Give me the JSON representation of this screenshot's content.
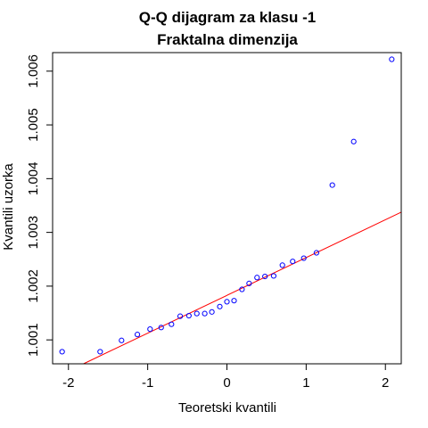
{
  "chart_data": {
    "type": "scatter",
    "title": "Q-Q dijagram za klasu -1",
    "subtitle": "Fraktalna dimenzija",
    "xlabel": "Teoretski kvantili",
    "ylabel": "Kvantili uzorka",
    "xlim": [
      -2.2,
      2.2
    ],
    "ylim": [
      1.000555,
      1.006345
    ],
    "x_ticks": [
      -2,
      -1,
      0,
      1,
      2
    ],
    "x_tick_labels": [
      "-2",
      "-1",
      "0",
      "1",
      "2"
    ],
    "y_ticks": [
      1.001,
      1.002,
      1.003,
      1.004,
      1.005,
      1.006
    ],
    "y_tick_labels": [
      "1.001",
      "1.002",
      "1.003",
      "1.004",
      "1.005",
      "1.006"
    ],
    "grid": false,
    "point_color": "#0000ff",
    "line_color": "#ff0000",
    "points": {
      "x": [
        -2.08,
        -1.6,
        -1.33,
        -1.13,
        -0.97,
        -0.83,
        -0.7,
        -0.59,
        -0.48,
        -0.38,
        -0.28,
        -0.19,
        -0.09,
        0.0,
        0.09,
        0.19,
        0.28,
        0.38,
        0.48,
        0.59,
        0.7,
        0.83,
        0.97,
        1.13,
        1.33,
        1.6,
        2.08
      ],
      "y": [
        1.00078,
        1.00078,
        1.00099,
        1.0011,
        1.0012,
        1.00123,
        1.00129,
        1.00144,
        1.00145,
        1.00149,
        1.00149,
        1.00152,
        1.00162,
        1.00171,
        1.00173,
        1.00194,
        1.00205,
        1.00216,
        1.00218,
        1.00219,
        1.00239,
        1.00246,
        1.00252,
        1.00262,
        1.00388,
        1.00469,
        1.00622
      ]
    },
    "reference_line": {
      "x": [
        -1.81,
        2.2
      ],
      "y": [
        1.000555,
        1.003376
      ]
    }
  }
}
